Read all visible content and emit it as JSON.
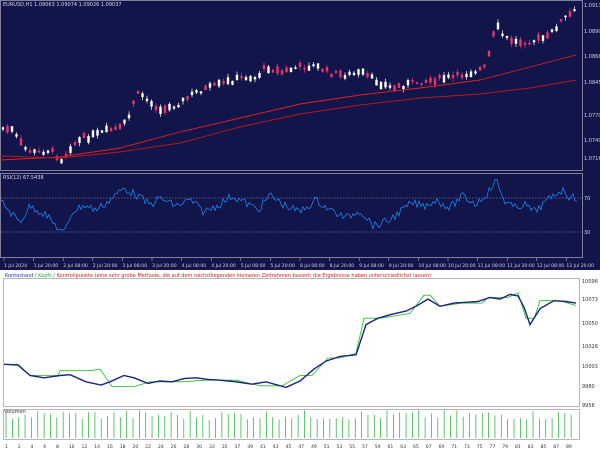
{
  "chart_header": {
    "symbol": "EURUSD,H1",
    "ohlc": "1.09063 1.09074 1.09026 1.09037"
  },
  "price_axis": [
    "1.09135",
    "1.08905",
    "1.08688",
    "1.08458",
    "1.07700",
    "1.07400",
    "1.07165"
  ],
  "rsi_header": "RSI(12) 67.5438",
  "rsi_levels": [
    "70",
    "30"
  ],
  "time_axis": [
    "1 Jul 2024",
    "1 Jul 20:00",
    "2 Jul 08:00",
    "2 Jul 20:00",
    "3 Jul 08:00",
    "3 Jul 20:00",
    "4 Jul 08:00",
    "4 Jul 20:00",
    "5 Jul 08:00",
    "5 Jul 20:00",
    "8 Jul 08:00",
    "8 Jul 20:00",
    "9 Jul 08:00",
    "9 Jul 20:00",
    "10 Jul 08:00",
    "10 Jul 20:00",
    "11 Jul 08:00",
    "11 Jul 20:00",
    "12 Jul 08:00",
    "12 Jul 20:00"
  ],
  "legend": {
    "item1": "Kontostand",
    "sep1": "/",
    "item2": "Kopfs",
    "sep2": "/",
    "item3": "Kontrollpunkte (eine sehr grobe Methode, die auf dem nächstliegenden kleineren Zeitrahmen basiert; die Ergebnisse haben unterschiedlichst lassen)"
  },
  "equity_axis": [
    "10096",
    "10073",
    "10050",
    "10026",
    "10003",
    "9980",
    "9956",
    "9936"
  ],
  "volume_label": "Volumen",
  "trade_axis": [
    "1",
    "2",
    "4",
    "6",
    "8",
    "10",
    "12",
    "14",
    "16",
    "18",
    "20",
    "22",
    "24",
    "26",
    "28",
    "30",
    "33",
    "35",
    "37",
    "39",
    "41",
    "43",
    "45",
    "47",
    "49",
    "51",
    "53",
    "55",
    "57",
    "59",
    "61",
    "63",
    "65",
    "67",
    "69",
    "71",
    "73",
    "75",
    "77",
    "79",
    "81",
    "83",
    "85",
    "87",
    "89"
  ],
  "colors": {
    "chart_bg": "#12154a",
    "candle_bull": "#ffffff",
    "candle_bear": "#e8336c",
    "ma": "#e02020",
    "rsi": "#1e90ff",
    "equity": "#1a237e",
    "checkpoint": "#22bb22",
    "volume": "#22aa33"
  }
}
